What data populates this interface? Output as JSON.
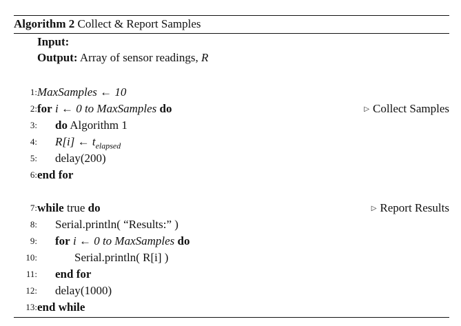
{
  "algorithm": {
    "label": "Algorithm 2",
    "title": "Collect & Report Samples",
    "input_label": "Input:",
    "output_label": "Output:",
    "output_text": "Array of sensor readings,",
    "output_var": "R"
  },
  "lines": [
    {
      "num": "1:",
      "kw1": "",
      "text": "MaxSamples ← 10",
      "kw2": "",
      "comment": ""
    },
    {
      "num": "2:",
      "kw1": "for",
      "text": "i ← 0 to MaxSamples",
      "kw2": "do",
      "comment": "Collect Samples"
    },
    {
      "num": "3:",
      "kw1": "do",
      "text": "Algorithm 1",
      "kw2": "",
      "comment": ""
    },
    {
      "num": "4:",
      "kw1": "",
      "text": "R[i] ← t",
      "sub": "elapsed",
      "kw2": "",
      "comment": ""
    },
    {
      "num": "5:",
      "kw1": "",
      "text": "delay(200)",
      "kw2": "",
      "comment": ""
    },
    {
      "num": "6:",
      "kw1": "end for",
      "text": "",
      "kw2": "",
      "comment": ""
    },
    {
      "num": "7:",
      "kw1": "while",
      "text": "true",
      "kw2": "do",
      "comment": "Report Results"
    },
    {
      "num": "8:",
      "kw1": "",
      "text": "Serial.println( “Results:” )",
      "kw2": "",
      "comment": ""
    },
    {
      "num": "9:",
      "kw1": "for",
      "text": "i ← 0 to MaxSamples",
      "kw2": "do",
      "comment": ""
    },
    {
      "num": "10:",
      "kw1": "",
      "text": "Serial.println( R[i] )",
      "kw2": "",
      "comment": ""
    },
    {
      "num": "11:",
      "kw1": "end for",
      "text": "",
      "kw2": "",
      "comment": ""
    },
    {
      "num": "12:",
      "kw1": "",
      "text": "delay(1000)",
      "kw2": "",
      "comment": ""
    },
    {
      "num": "13:",
      "kw1": "end while",
      "text": "",
      "kw2": "",
      "comment": ""
    }
  ]
}
